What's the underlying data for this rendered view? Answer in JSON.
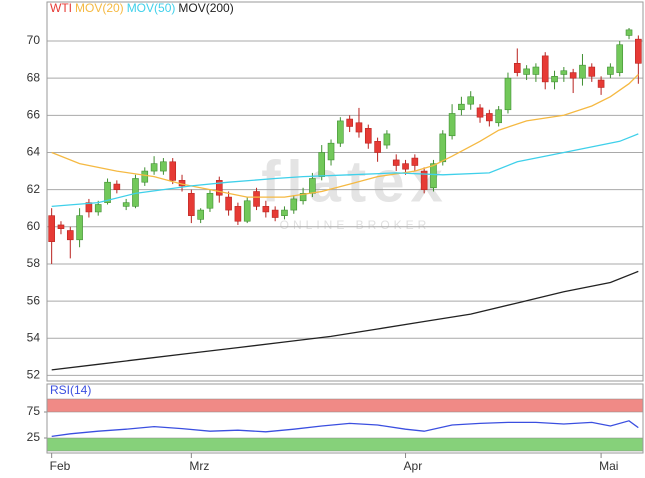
{
  "chart_data": [
    {
      "type": "candlestick",
      "watermark": {
        "logo": "flatex",
        "tagline": "ONLINE BROKER"
      },
      "xlim": [
        -0.5,
        63.5
      ],
      "ylim": [
        51.7,
        72.1
      ],
      "yticks": [
        52,
        54,
        56,
        58,
        60,
        62,
        64,
        66,
        68,
        70
      ],
      "grid": true,
      "series": [
        {
          "name": "WTI",
          "color": "#e63a35",
          "up_color": "#72c85a",
          "down_color": "#e63a35",
          "open": [
            60.6,
            60.1,
            59.8,
            59.3,
            61.3,
            60.8,
            61.3,
            62.3,
            61.1,
            61.1,
            62.4,
            63.0,
            63.0,
            63.5,
            62.5,
            61.8,
            60.4,
            61.0,
            62.5,
            61.6,
            61.1,
            60.3,
            61.9,
            61.1,
            60.9,
            60.6,
            60.9,
            61.4,
            61.8,
            62.7,
            63.6,
            64.5,
            65.8,
            65.6,
            65.3,
            64.6,
            64.4,
            63.6,
            63.4,
            63.7,
            63.0,
            62.1,
            63.5,
            64.9,
            66.3,
            66.6,
            66.4,
            66.1,
            65.6,
            66.3,
            68.8,
            68.2,
            68.2,
            69.2,
            67.8,
            68.2,
            68.3,
            68.0,
            68.6,
            67.9,
            68.2,
            68.3,
            70.3,
            70.1
          ],
          "high": [
            61.0,
            60.3,
            60.0,
            61.0,
            61.5,
            61.4,
            62.6,
            62.5,
            61.5,
            62.8,
            63.2,
            63.8,
            63.7,
            63.7,
            62.8,
            62.0,
            61.0,
            62.0,
            62.7,
            61.9,
            61.3,
            61.6,
            62.1,
            61.4,
            61.1,
            61.1,
            61.7,
            62.1,
            62.9,
            64.4,
            64.7,
            65.9,
            66.0,
            66.4,
            65.5,
            64.8,
            65.2,
            63.9,
            63.6,
            63.9,
            63.2,
            63.6,
            65.2,
            66.6,
            67.0,
            67.3,
            66.6,
            66.3,
            66.5,
            68.3,
            69.6,
            68.7,
            68.8,
            69.4,
            68.4,
            68.6,
            68.5,
            69.3,
            68.8,
            68.1,
            68.8,
            70.0,
            70.7,
            70.3
          ],
          "low": [
            58.0,
            59.6,
            58.3,
            58.9,
            60.5,
            60.6,
            61.2,
            61.8,
            60.9,
            61.0,
            62.2,
            62.8,
            62.8,
            62.3,
            61.9,
            60.2,
            60.2,
            60.8,
            61.3,
            60.6,
            60.1,
            60.2,
            60.9,
            60.5,
            60.3,
            60.4,
            60.7,
            61.2,
            61.6,
            62.5,
            63.3,
            64.3,
            65.1,
            64.8,
            64.2,
            63.5,
            64.2,
            63.0,
            62.8,
            63.0,
            61.8,
            61.9,
            63.3,
            64.7,
            66.0,
            66.3,
            65.6,
            65.4,
            65.4,
            66.1,
            68.1,
            67.9,
            67.8,
            67.4,
            67.4,
            67.8,
            67.2,
            67.6,
            67.8,
            67.1,
            68.0,
            68.1,
            70.1,
            67.7
          ],
          "close": [
            59.2,
            59.9,
            59.3,
            60.6,
            60.8,
            61.2,
            62.4,
            62.0,
            61.3,
            62.6,
            63.0,
            63.4,
            63.5,
            62.5,
            62.2,
            60.6,
            60.9,
            61.8,
            61.7,
            60.9,
            60.3,
            61.4,
            61.1,
            60.8,
            60.5,
            60.9,
            61.5,
            61.8,
            62.6,
            64.0,
            64.5,
            65.7,
            65.4,
            65.1,
            64.5,
            64.0,
            65.0,
            63.3,
            63.1,
            63.3,
            62.0,
            63.4,
            65.0,
            66.1,
            66.6,
            67.0,
            65.9,
            65.7,
            66.3,
            68.0,
            68.3,
            68.5,
            68.6,
            67.8,
            68.1,
            68.4,
            68.0,
            68.7,
            68.1,
            67.5,
            68.6,
            69.8,
            70.6,
            68.8
          ]
        },
        {
          "name": "MOV(20)",
          "color": "#f5b942",
          "x": [
            0,
            3,
            7,
            11,
            14,
            17,
            21,
            25,
            29,
            32,
            35,
            39,
            41,
            43,
            46,
            48,
            51,
            55,
            58,
            60,
            62,
            63
          ],
          "values": [
            64.0,
            63.4,
            63.0,
            62.7,
            62.3,
            62.0,
            61.6,
            61.6,
            61.9,
            62.3,
            62.7,
            63.0,
            63.3,
            63.8,
            64.6,
            65.2,
            65.7,
            66.0,
            66.5,
            67.0,
            67.7,
            68.2
          ]
        },
        {
          "name": "MOV(50)",
          "color": "#3fd0ea",
          "x": [
            0,
            5,
            9,
            15,
            19,
            24,
            27,
            32,
            37,
            42,
            47,
            50,
            55,
            58,
            61,
            63
          ],
          "values": [
            61.1,
            61.3,
            61.8,
            62.2,
            62.4,
            62.6,
            62.7,
            62.8,
            62.9,
            62.8,
            62.9,
            63.5,
            64.0,
            64.3,
            64.6,
            65.0
          ]
        },
        {
          "name": "MOV(200)",
          "color": "#222222",
          "x": [
            0,
            5,
            10,
            15,
            20,
            25,
            30,
            35,
            40,
            45,
            50,
            55,
            60,
            63
          ],
          "values": [
            52.3,
            52.6,
            52.9,
            53.2,
            53.5,
            53.8,
            54.1,
            54.5,
            54.9,
            55.3,
            55.9,
            56.5,
            57.0,
            57.6
          ]
        }
      ]
    },
    {
      "type": "line",
      "xlim": [
        -0.5,
        63.5
      ],
      "xticks": [
        {
          "value": 0,
          "label": "Feb"
        },
        {
          "value": 15,
          "label": "Mrz"
        },
        {
          "value": 38,
          "label": "Apr"
        },
        {
          "value": 59,
          "label": "Mai"
        }
      ],
      "ylim": [
        0,
        100
      ],
      "yticks": [
        25,
        75
      ],
      "bands": [
        {
          "from": 75,
          "to": 100,
          "color": "#f08a86"
        },
        {
          "from": 0,
          "to": 25,
          "color": "#86d17a"
        }
      ],
      "series": [
        {
          "name": "RSI(14)",
          "color": "#3b4fe0",
          "x": [
            0,
            2,
            5,
            8,
            11,
            14,
            17,
            20,
            23,
            26,
            29,
            32,
            35,
            38,
            40,
            43,
            46,
            49,
            52,
            55,
            58,
            60,
            62,
            63
          ],
          "values": [
            28,
            33,
            38,
            42,
            47,
            43,
            38,
            40,
            37,
            42,
            48,
            53,
            50,
            42,
            38,
            50,
            53,
            55,
            55,
            52,
            55,
            48,
            58,
            45
          ]
        }
      ]
    }
  ]
}
